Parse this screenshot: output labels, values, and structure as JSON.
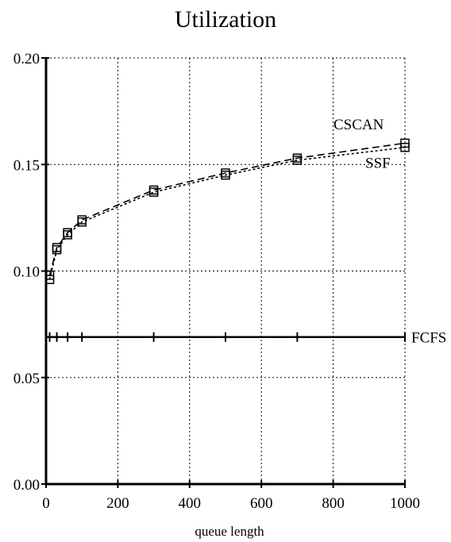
{
  "chart_data": {
    "type": "line",
    "title": "Utilization",
    "xlabel": "queue length",
    "ylabel": "",
    "xlim": [
      0,
      1000
    ],
    "ylim": [
      0,
      0.2
    ],
    "x_ticks": [
      "0",
      "200",
      "400",
      "600",
      "800",
      "1000"
    ],
    "x_tick_values": [
      0,
      200,
      400,
      600,
      800,
      1000
    ],
    "y_ticks": [
      "0.00",
      "0.05",
      "0.10",
      "0.15",
      "0.20"
    ],
    "y_tick_values": [
      0,
      0.05,
      0.1,
      0.15,
      0.2
    ],
    "grid": true,
    "series": [
      {
        "name": "CSCAN",
        "style": "dashed",
        "marker": "square",
        "x": [
          10,
          30,
          60,
          100,
          300,
          500,
          700,
          1000
        ],
        "y": [
          0.098,
          0.111,
          0.118,
          0.124,
          0.138,
          0.146,
          0.153,
          0.16
        ]
      },
      {
        "name": "SSF",
        "style": "dotted",
        "marker": "square",
        "x": [
          10,
          30,
          60,
          100,
          300,
          500,
          700,
          1000
        ],
        "y": [
          0.096,
          0.11,
          0.117,
          0.123,
          0.137,
          0.145,
          0.152,
          0.158
        ]
      },
      {
        "name": "FCFS",
        "style": "solid",
        "marker": "plus",
        "x": [
          10,
          30,
          60,
          100,
          300,
          500,
          700,
          1000
        ],
        "y": [
          0.069,
          0.069,
          0.069,
          0.069,
          0.069,
          0.069,
          0.069,
          0.069
        ]
      }
    ]
  }
}
